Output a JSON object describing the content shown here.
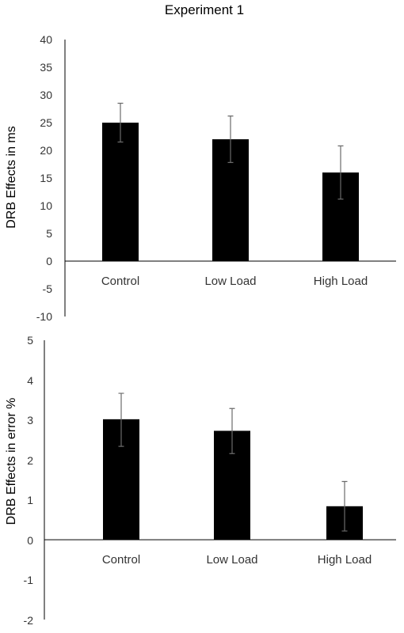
{
  "title": "Experiment 1",
  "chart_data": [
    {
      "type": "bar",
      "ylabel": "DRB Effects in ms",
      "categories": [
        "Control",
        "Low Load",
        "High Load"
      ],
      "values": [
        25,
        22,
        16
      ],
      "error_low": [
        21.5,
        17.8,
        11.2
      ],
      "error_high": [
        28.5,
        26.2,
        20.8
      ],
      "ylim": [
        -10,
        40
      ],
      "yticks": [
        "40",
        "35",
        "30",
        "25",
        "20",
        "15",
        "10",
        "5",
        "0",
        "-5",
        "-10"
      ],
      "bar_color": "#000000",
      "grid": false
    },
    {
      "type": "bar",
      "ylabel": "DRB Effects in error %",
      "categories": [
        "Control",
        "Low Load",
        "High Load"
      ],
      "values": [
        3.02,
        2.73,
        0.84
      ],
      "error_low": [
        2.34,
        2.16,
        0.22
      ],
      "error_high": [
        3.67,
        3.29,
        1.46
      ],
      "ylim": [
        -2,
        5
      ],
      "yticks": [
        "5",
        "4",
        "3",
        "2",
        "1",
        "0",
        "-1",
        "-2"
      ],
      "bar_color": "#000000",
      "grid": false
    }
  ]
}
